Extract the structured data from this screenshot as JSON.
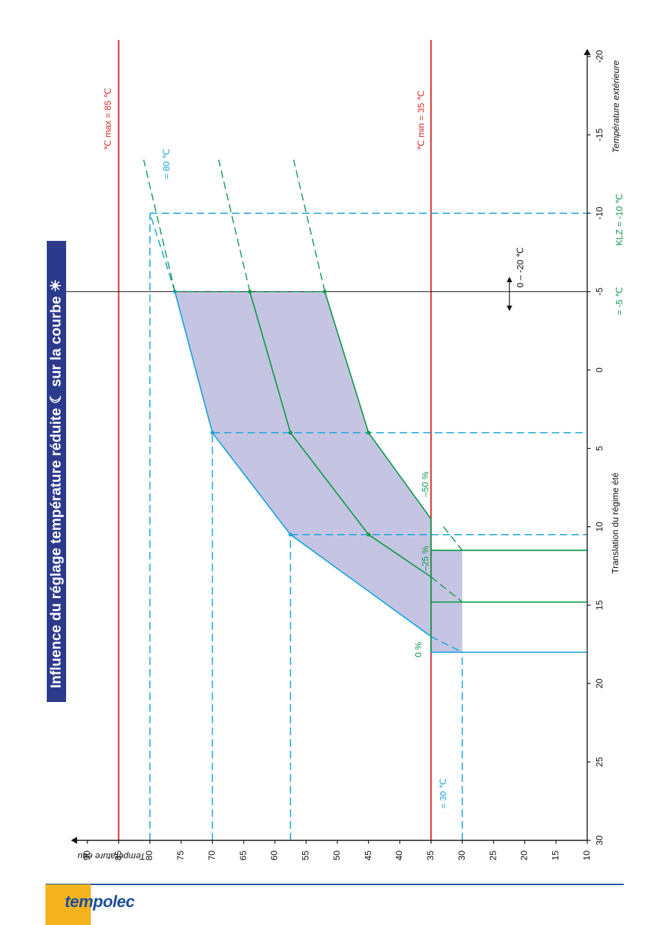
{
  "title": "Influence du réglage température réduite ☾ sur la courbe ☀",
  "brand": "tempolec",
  "colors": {
    "red": "#d42a27",
    "blue": "#1aa3dc",
    "green": "#0f9a49",
    "fill": "#c5c5e3",
    "title_bg": "#2c3a8c",
    "brand": "#1b4f9c"
  },
  "chart_data": {
    "type": "line",
    "xlabel": "Translation du régime été",
    "x2label": "Température extérieure",
    "ylabel": "Température eau",
    "x_ticks": [
      "30",
      "25",
      "20",
      "15",
      "10",
      "5",
      "0",
      "-5",
      "-10",
      "-15",
      "-20"
    ],
    "y_ticks": [
      "10",
      "15",
      "20",
      "25",
      "30",
      "35",
      "40",
      "45",
      "50",
      "55",
      "60",
      "65",
      "70",
      "75",
      "80",
      "85",
      "90"
    ],
    "xlim": [
      30,
      -20
    ],
    "ylim": [
      10,
      90
    ],
    "annotations": {
      "max": "℃ max = 85 ℃",
      "min": "℃ min = 35 ℃",
      "top_setpoint": "= 80 ℃",
      "bottom_setpoint": "= 30 ℃",
      "ext_range": "0 – -20 ℃",
      "ext_setting": "= -5 ℃",
      "klz": "KLZ = -10 ℃",
      "p0": "0 %",
      "p25": "–25 %",
      "p50": "–50 %"
    },
    "limit_lines": [
      {
        "y": 85,
        "name": "max"
      },
      {
        "y": 35,
        "name": "min"
      }
    ],
    "series": [
      {
        "name": "0 %",
        "x": [
          18,
          17,
          10.5,
          4,
          -5
        ],
        "y": [
          35,
          35,
          57.5,
          70,
          76
        ]
      },
      {
        "name": "–25 %",
        "x": [
          14.8,
          13.2,
          10.5,
          4,
          -5
        ],
        "y": [
          35,
          35,
          45,
          57.5,
          64
        ]
      },
      {
        "name": "–50 %",
        "x": [
          11.5,
          9.5,
          4,
          -5
        ],
        "y": [
          35,
          35,
          45,
          52
        ]
      }
    ]
  }
}
